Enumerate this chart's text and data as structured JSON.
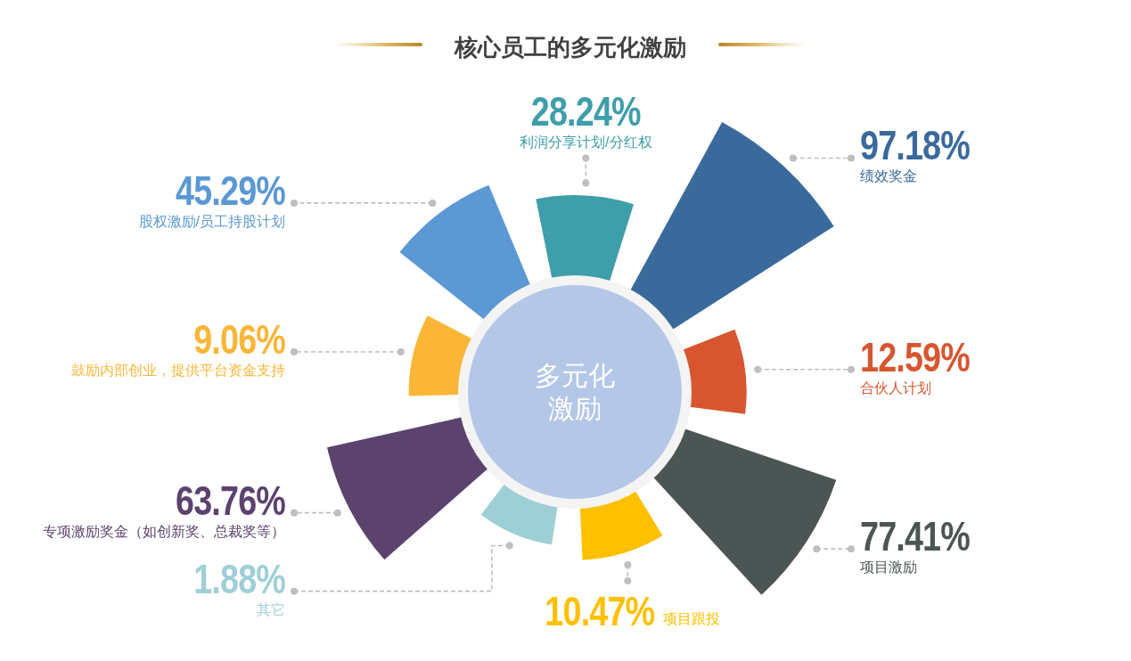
{
  "chart_data": {
    "type": "other",
    "title": "核心员工的多元化激励",
    "categories": [
      "利润分享计划/分红权",
      "绩效奖金",
      "合伙人计划",
      "项目激励",
      "项目跟投",
      "其它",
      "专项激励奖金（如创新奖、总裁奖等）",
      "鼓励内部创业，提供平台资金支持",
      "股权激励/员工持股计划"
    ],
    "values": [
      28.24,
      97.18,
      12.59,
      77.41,
      10.47,
      1.88,
      63.76,
      9.06,
      45.29
    ],
    "value_labels": [
      "28.24%",
      "97.18%",
      "12.59%",
      "77.41%",
      "10.47%",
      "1.88%",
      "63.76%",
      "9.06%",
      "45.29%"
    ],
    "colors": [
      "#3e9ea9",
      "#396a9b",
      "#d7562f",
      "#4b5553",
      "#ffc000",
      "#9fcfd6",
      "#5b436e",
      "#fbb636",
      "#5b98d4"
    ],
    "annotations": [
      "多元化激励"
    ]
  }
}
